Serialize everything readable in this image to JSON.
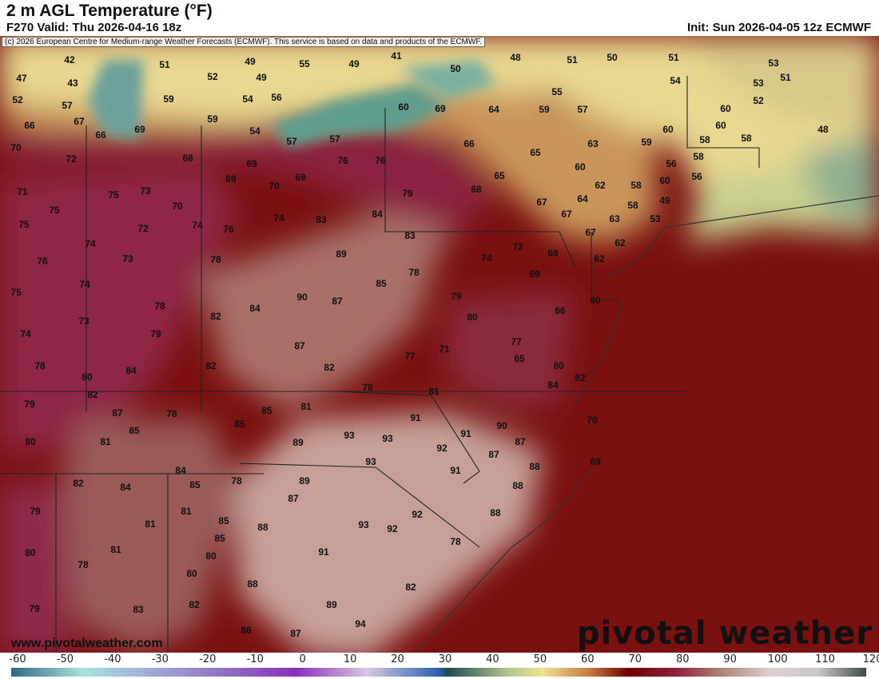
{
  "header": {
    "title": "2 m AGL Temperature (°F)",
    "valid": "F270 Valid: Thu 2026-04-16 18z",
    "init": "Init: Sun 2026-04-05 12z ECMWF"
  },
  "copyright": "(c) 2026 European Centre for Medium-range Weather Forecasts (ECMWF). This service is based on data and products of the ECMWF.",
  "watermark": {
    "site": "www.pivotalweather.com",
    "logo": "pivotal weather"
  },
  "colorbar": {
    "ticks": [
      -60,
      -50,
      -40,
      -30,
      -20,
      -10,
      0,
      10,
      20,
      30,
      40,
      50,
      60,
      70,
      80,
      90,
      100,
      110,
      120
    ],
    "colors": {
      "-60": "#2f6a84",
      "-45": "#a8e0dc",
      "-30": "#a0a8d8",
      "-15": "#9070c0",
      "0": "#8a30b8",
      "15": "#d8c8e0",
      "30": "#2a60b0",
      "32": "#1e4c50",
      "45": "#b8c890",
      "52": "#f0e090",
      "62": "#c07840",
      "70": "#700000",
      "80": "#902040",
      "90": "#b08878",
      "100": "#e0d0d0",
      "110": "#c8c8c8",
      "120": "#404848"
    }
  },
  "temperatures": [
    42,
    51,
    49,
    55,
    49,
    41,
    50,
    48,
    51,
    50,
    51,
    53,
    47,
    43,
    52,
    49,
    54,
    53,
    51,
    52,
    57,
    59,
    54,
    56,
    55,
    52,
    66,
    67,
    66,
    69,
    59,
    54,
    57,
    57,
    60,
    69,
    64,
    59,
    57,
    60,
    60,
    60,
    58,
    58,
    48,
    70,
    72,
    68,
    69,
    76,
    76,
    66,
    65,
    63,
    59,
    56,
    58,
    56,
    60,
    49,
    71,
    75,
    73,
    69,
    70,
    69,
    79,
    65,
    68,
    60,
    62,
    58,
    64,
    67,
    75,
    70,
    74,
    76,
    74,
    83,
    84,
    67,
    58,
    53,
    75,
    72,
    74,
    83,
    63,
    67,
    62,
    76,
    73,
    78,
    89,
    74,
    72,
    69,
    62,
    74,
    75,
    85,
    78,
    90,
    87,
    69,
    78,
    84,
    82,
    79,
    66,
    60,
    73,
    74,
    79,
    80,
    87,
    77,
    78,
    84,
    80,
    82,
    82,
    82,
    77,
    71,
    65,
    80,
    82,
    79,
    87,
    78,
    81,
    84,
    78,
    85,
    81,
    70,
    91,
    85,
    85,
    93,
    93,
    91,
    90,
    80,
    81,
    89,
    92,
    87,
    87,
    84,
    93,
    69,
    88,
    82,
    84,
    85,
    78,
    89,
    91,
    88,
    87,
    79,
    81,
    81,
    85,
    88,
    93,
    92,
    92,
    88,
    85,
    78,
    80,
    81,
    91,
    80,
    78,
    80,
    88,
    82,
    82,
    79,
    83,
    89,
    94,
    86,
    87
  ]
}
